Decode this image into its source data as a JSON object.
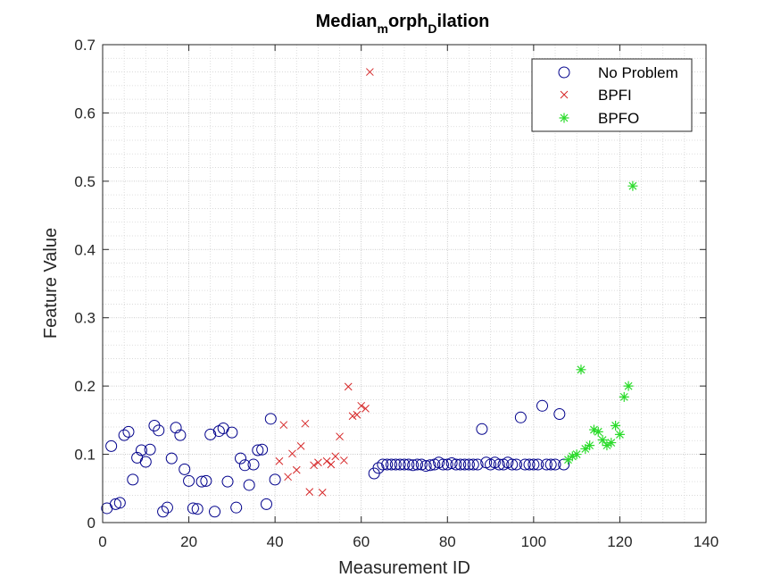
{
  "chart_data": {
    "type": "scatter",
    "title": {
      "base": "Median",
      "sub1": "m",
      "mid": "orph",
      "sub2": "D",
      "end": "ilation"
    },
    "xlabel": "Measurement ID",
    "ylabel": "Feature Value",
    "xlim": [
      0,
      140
    ],
    "ylim": [
      0,
      0.7
    ],
    "xticks": [
      0,
      20,
      40,
      60,
      80,
      100,
      120,
      140
    ],
    "yticks": [
      0,
      0.1,
      0.2,
      0.3,
      0.4,
      0.5,
      0.6,
      0.7
    ],
    "xtick_labels": [
      "0",
      "20",
      "40",
      "60",
      "80",
      "100",
      "120",
      "140"
    ],
    "ytick_labels": [
      "0",
      "0.1",
      "0.2",
      "0.3",
      "0.4",
      "0.5",
      "0.6",
      "0.7"
    ],
    "grid": "on (major and minor)",
    "legend_position": "top-right",
    "series": [
      {
        "name": "No Problem",
        "marker": "circle",
        "color": "#00008B",
        "points": [
          [
            1,
            0.021
          ],
          [
            2,
            0.112
          ],
          [
            3,
            0.027
          ],
          [
            4,
            0.029
          ],
          [
            5,
            0.128
          ],
          [
            6,
            0.133
          ],
          [
            7,
            0.063
          ],
          [
            8,
            0.095
          ],
          [
            9,
            0.106
          ],
          [
            10,
            0.089
          ],
          [
            11,
            0.107
          ],
          [
            12,
            0.142
          ],
          [
            13,
            0.135
          ],
          [
            14,
            0.016
          ],
          [
            15,
            0.022
          ],
          [
            16,
            0.094
          ],
          [
            17,
            0.139
          ],
          [
            18,
            0.128
          ],
          [
            19,
            0.078
          ],
          [
            20,
            0.061
          ],
          [
            21,
            0.021
          ],
          [
            22,
            0.02
          ],
          [
            23,
            0.06
          ],
          [
            24,
            0.061
          ],
          [
            25,
            0.129
          ],
          [
            26,
            0.016
          ],
          [
            27,
            0.134
          ],
          [
            28,
            0.138
          ],
          [
            29,
            0.06
          ],
          [
            30,
            0.132
          ],
          [
            31,
            0.022
          ],
          [
            32,
            0.094
          ],
          [
            33,
            0.084
          ],
          [
            34,
            0.055
          ],
          [
            35,
            0.085
          ],
          [
            36,
            0.106
          ],
          [
            37,
            0.107
          ],
          [
            38,
            0.027
          ],
          [
            39,
            0.152
          ],
          [
            40,
            0.063
          ],
          [
            63,
            0.072
          ],
          [
            64,
            0.08
          ],
          [
            65,
            0.085
          ],
          [
            66,
            0.085
          ],
          [
            67,
            0.085
          ],
          [
            68,
            0.085
          ],
          [
            69,
            0.085
          ],
          [
            70,
            0.085
          ],
          [
            71,
            0.085
          ],
          [
            72,
            0.084
          ],
          [
            73,
            0.085
          ],
          [
            74,
            0.085
          ],
          [
            75,
            0.083
          ],
          [
            76,
            0.084
          ],
          [
            77,
            0.085
          ],
          [
            78,
            0.088
          ],
          [
            79,
            0.085
          ],
          [
            80,
            0.085
          ],
          [
            81,
            0.087
          ],
          [
            82,
            0.085
          ],
          [
            83,
            0.085
          ],
          [
            84,
            0.085
          ],
          [
            85,
            0.085
          ],
          [
            86,
            0.085
          ],
          [
            87,
            0.085
          ],
          [
            88,
            0.137
          ],
          [
            89,
            0.088
          ],
          [
            90,
            0.085
          ],
          [
            91,
            0.088
          ],
          [
            92,
            0.085
          ],
          [
            93,
            0.085
          ],
          [
            94,
            0.088
          ],
          [
            95,
            0.085
          ],
          [
            96,
            0.085
          ],
          [
            97,
            0.154
          ],
          [
            98,
            0.085
          ],
          [
            99,
            0.085
          ],
          [
            100,
            0.085
          ],
          [
            101,
            0.085
          ],
          [
            102,
            0.171
          ],
          [
            103,
            0.085
          ],
          [
            104,
            0.085
          ],
          [
            105,
            0.085
          ],
          [
            106,
            0.159
          ],
          [
            107,
            0.085
          ]
        ]
      },
      {
        "name": "BPFI",
        "marker": "x",
        "color": "#D62728",
        "points": [
          [
            41,
            0.09
          ],
          [
            42,
            0.143
          ],
          [
            43,
            0.067
          ],
          [
            44,
            0.101
          ],
          [
            45,
            0.077
          ],
          [
            46,
            0.112
          ],
          [
            47,
            0.145
          ],
          [
            48,
            0.045
          ],
          [
            49,
            0.084
          ],
          [
            50,
            0.088
          ],
          [
            51,
            0.044
          ],
          [
            52,
            0.09
          ],
          [
            53,
            0.085
          ],
          [
            54,
            0.097
          ],
          [
            55,
            0.126
          ],
          [
            56,
            0.091
          ],
          [
            57,
            0.199
          ],
          [
            58,
            0.156
          ],
          [
            59,
            0.158
          ],
          [
            60,
            0.171
          ],
          [
            61,
            0.167
          ],
          [
            62,
            0.66
          ]
        ]
      },
      {
        "name": "BPFO",
        "marker": "asterisk",
        "color": "#2CDB2C",
        "points": [
          [
            108,
            0.092
          ],
          [
            109,
            0.097
          ],
          [
            110,
            0.1
          ],
          [
            111,
            0.224
          ],
          [
            112,
            0.108
          ],
          [
            113,
            0.113
          ],
          [
            114,
            0.136
          ],
          [
            115,
            0.133
          ],
          [
            116,
            0.121
          ],
          [
            117,
            0.113
          ],
          [
            118,
            0.117
          ],
          [
            119,
            0.142
          ],
          [
            120,
            0.129
          ],
          [
            121,
            0.184
          ],
          [
            122,
            0.2
          ],
          [
            123,
            0.493
          ]
        ]
      }
    ]
  }
}
